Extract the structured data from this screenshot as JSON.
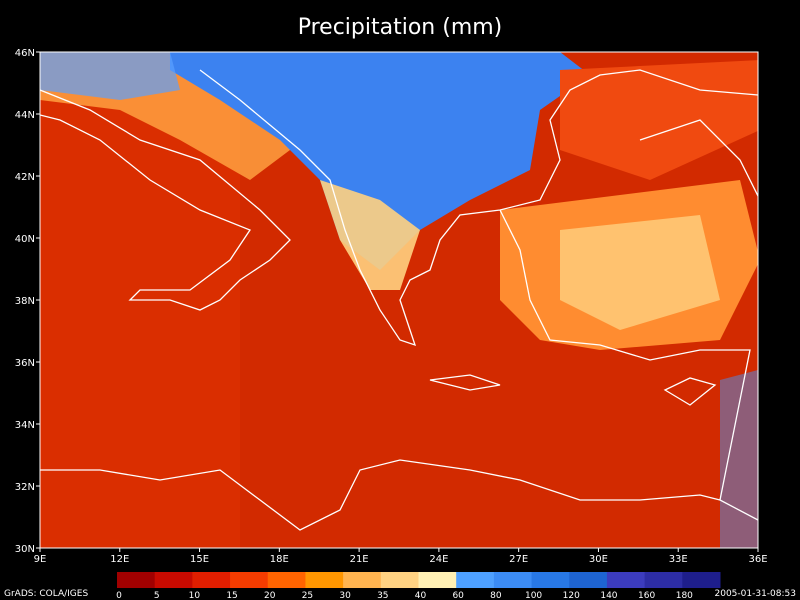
{
  "map": {
    "title": "Precipitation (mm)",
    "lon_labels": [
      "9E",
      "12E",
      "15E",
      "18E",
      "21E",
      "24E",
      "27E",
      "30E",
      "33E",
      "36E"
    ],
    "lat_labels": [
      "46N",
      "44N",
      "42N",
      "40N",
      "38N",
      "36N",
      "34N",
      "32N",
      "30N"
    ],
    "colorbar": {
      "labels": [
        "0",
        "5",
        "10",
        "15",
        "20",
        "25",
        "30",
        "35",
        "40",
        "60",
        "80",
        "100",
        "120",
        "140",
        "160",
        "180"
      ],
      "colors": [
        "#a00000",
        "#c80a00",
        "#e11e00",
        "#f53c00",
        "#ff6400",
        "#ff9600",
        "#ffb450",
        "#ffd282",
        "#fff0b4",
        "#4ea0ff",
        "#3c8cf5",
        "#2878e6",
        "#1e64d2",
        "#3c3cbe",
        "#2d2da5",
        "#1e1e8c"
      ]
    },
    "credit": "GrADS: COLA/IGES",
    "timestamp": "2005-01-31-08:53"
  }
}
